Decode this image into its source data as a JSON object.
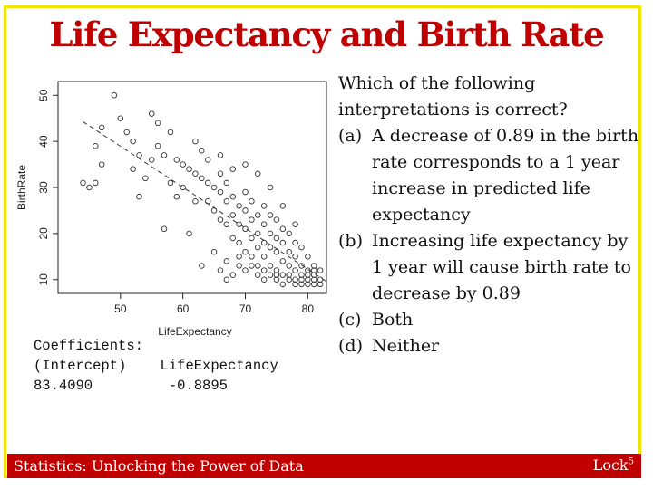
{
  "slide": {
    "title": "Life Expectancy and Birth Rate",
    "accent_color": "#c00000",
    "border_color": "#f2e600"
  },
  "coefficients": {
    "header": "Coefficients:",
    "intercept_label": "(Intercept)",
    "slope_label": "LifeExpectancy",
    "intercept_value": "83.4090",
    "slope_value": "-0.8895"
  },
  "question": {
    "intro": "Which of the following interpretations is correct?",
    "options": [
      {
        "letter": "(a)",
        "text": "A decrease of 0.89 in the birth rate corresponds to a 1 year increase in predicted life expectancy"
      },
      {
        "letter": "(b)",
        "text": "Increasing life expectancy by 1 year will cause birth rate to decrease by 0.89"
      },
      {
        "letter": "(c)",
        "text": "Both"
      },
      {
        "letter": "(d)",
        "text": "Neither"
      }
    ]
  },
  "footer": {
    "left_text": "Statistics: Unlocking the Power of Data",
    "right_text": "Lock",
    "right_sup": "5"
  },
  "chart_data": {
    "type": "scatter",
    "title": "",
    "xlabel": "LifeExpectancy",
    "ylabel": "BirthRate",
    "xlim": [
      40,
      83
    ],
    "ylim": [
      7,
      53
    ],
    "x_ticks": [
      "50",
      "60",
      "70",
      "80"
    ],
    "y_ticks": [
      "10",
      "20",
      "30",
      "40",
      "50"
    ],
    "regression_line": {
      "intercept": 83.409,
      "slope": -0.8895,
      "style": "dashed"
    },
    "points": [
      [
        49,
        50
      ],
      [
        50,
        45
      ],
      [
        47,
        43
      ],
      [
        46,
        39
      ],
      [
        47,
        35
      ],
      [
        51,
        42
      ],
      [
        52,
        40
      ],
      [
        53,
        37
      ],
      [
        55,
        46
      ],
      [
        56,
        39
      ],
      [
        55,
        36
      ],
      [
        57,
        37
      ],
      [
        58,
        31
      ],
      [
        59,
        36
      ],
      [
        60,
        35
      ],
      [
        60,
        30
      ],
      [
        61,
        34
      ],
      [
        62,
        33
      ],
      [
        62,
        27
      ],
      [
        63,
        38
      ],
      [
        63,
        32
      ],
      [
        64,
        31
      ],
      [
        64,
        27
      ],
      [
        65,
        30
      ],
      [
        65,
        25
      ],
      [
        66,
        33
      ],
      [
        66,
        29
      ],
      [
        66,
        23
      ],
      [
        67,
        31
      ],
      [
        67,
        27
      ],
      [
        67,
        22
      ],
      [
        68,
        28
      ],
      [
        68,
        24
      ],
      [
        68,
        19
      ],
      [
        69,
        26
      ],
      [
        69,
        22
      ],
      [
        69,
        18
      ],
      [
        70,
        29
      ],
      [
        70,
        25
      ],
      [
        70,
        21
      ],
      [
        70,
        16
      ],
      [
        71,
        27
      ],
      [
        71,
        23
      ],
      [
        71,
        19
      ],
      [
        71,
        15
      ],
      [
        72,
        24
      ],
      [
        72,
        20
      ],
      [
        72,
        17
      ],
      [
        72,
        13
      ],
      [
        73,
        26
      ],
      [
        73,
        22
      ],
      [
        73,
        18
      ],
      [
        73,
        15
      ],
      [
        73,
        12
      ],
      [
        74,
        24
      ],
      [
        74,
        20
      ],
      [
        74,
        17
      ],
      [
        74,
        13
      ],
      [
        75,
        23
      ],
      [
        75,
        19
      ],
      [
        75,
        16
      ],
      [
        75,
        12
      ],
      [
        75,
        10
      ],
      [
        76,
        21
      ],
      [
        76,
        18
      ],
      [
        76,
        14
      ],
      [
        76,
        11
      ],
      [
        77,
        20
      ],
      [
        77,
        16
      ],
      [
        77,
        13
      ],
      [
        77,
        10
      ],
      [
        78,
        18
      ],
      [
        78,
        15
      ],
      [
        78,
        12
      ],
      [
        78,
        10
      ],
      [
        79,
        17
      ],
      [
        79,
        13
      ],
      [
        79,
        11
      ],
      [
        79,
        9
      ],
      [
        80,
        15
      ],
      [
        80,
        12
      ],
      [
        80,
        10
      ],
      [
        80,
        9
      ],
      [
        81,
        13
      ],
      [
        81,
        11
      ],
      [
        81,
        10
      ],
      [
        81,
        9
      ],
      [
        82,
        12
      ],
      [
        82,
        10
      ],
      [
        82,
        9
      ],
      [
        69,
        13
      ],
      [
        70,
        12
      ],
      [
        68,
        11
      ],
      [
        67,
        10
      ],
      [
        66,
        12
      ],
      [
        72,
        11
      ],
      [
        74,
        11
      ],
      [
        76,
        9
      ],
      [
        78,
        9
      ],
      [
        80,
        11
      ],
      [
        81,
        12
      ],
      [
        79,
        10
      ],
      [
        77,
        11
      ],
      [
        75,
        11
      ],
      [
        73,
        10
      ],
      [
        71,
        13
      ],
      [
        69,
        15
      ],
      [
        67,
        14
      ],
      [
        65,
        16
      ],
      [
        63,
        13
      ],
      [
        61,
        20
      ],
      [
        59,
        28
      ],
      [
        57,
        21
      ],
      [
        53,
        28
      ],
      [
        45,
        30
      ],
      [
        44,
        31
      ],
      [
        46,
        31
      ],
      [
        52,
        34
      ],
      [
        54,
        32
      ],
      [
        56,
        44
      ],
      [
        58,
        42
      ],
      [
        62,
        40
      ],
      [
        64,
        36
      ],
      [
        66,
        37
      ],
      [
        68,
        34
      ],
      [
        70,
        35
      ],
      [
        72,
        33
      ],
      [
        74,
        30
      ],
      [
        76,
        26
      ],
      [
        78,
        22
      ]
    ]
  }
}
